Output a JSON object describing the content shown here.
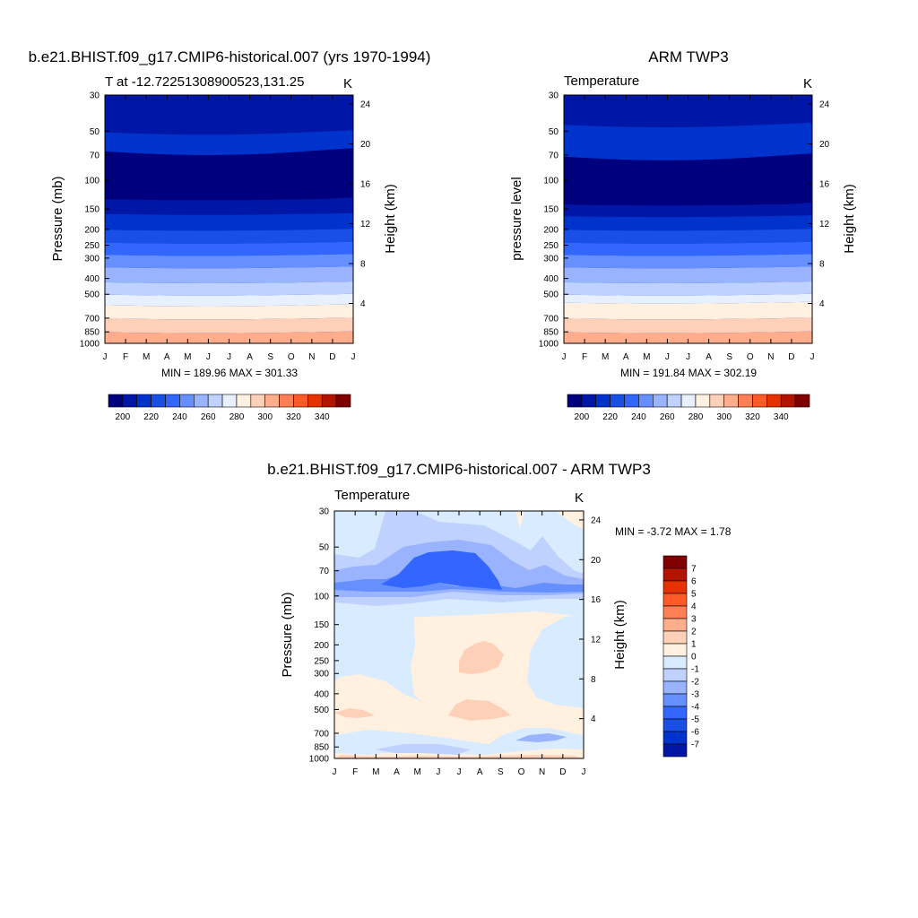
{
  "months": [
    "J",
    "F",
    "M",
    "A",
    "M",
    "J",
    "J",
    "A",
    "S",
    "O",
    "N",
    "D",
    "J"
  ],
  "palette_abs": [
    "#00007f",
    "#0016a6",
    "#0033cc",
    "#1a4fe6",
    "#3366ff",
    "#6690ff",
    "#99b3ff",
    "#bfd2ff",
    "#e6f0ff",
    "#fff0e0",
    "#ffd0b8",
    "#ffad8c",
    "#ff8055",
    "#ff5a28",
    "#e63200",
    "#b31400",
    "#800000"
  ],
  "palette_diff": [
    "#00007f",
    "#0016a6",
    "#0033cc",
    "#1a4fe6",
    "#3366ff",
    "#6690ff",
    "#99b3ff",
    "#bfd2ff",
    "#d9ebff",
    "#fff0e0",
    "#ffd0b8",
    "#ffad8c",
    "#ff8055",
    "#ff5a28",
    "#e63200",
    "#b31400",
    "#800000"
  ],
  "chart_data": [
    {
      "type": "contour",
      "title": "b.e21.BHIST.f09_g17.CMIP6-historical.007 (yrs 1970-1994)",
      "left_string": "T at -12.72251308900523,131.25",
      "right_string": "K",
      "ylabel": "Pressure (mb)",
      "ylabel_right": "Height (km)",
      "stats": "MIN = 189.96 MAX = 301.33",
      "pressure_ticks": [
        "30",
        "50",
        "70",
        "100",
        "150",
        "200",
        "250",
        "300",
        "400",
        "500",
        "700",
        "850",
        "1000"
      ],
      "height_ticks": [
        "24",
        "20",
        "16",
        "12",
        "8",
        "4"
      ],
      "colorbar_labels": [
        "200",
        "220",
        "240",
        "260",
        "280",
        "300",
        "320",
        "340"
      ],
      "levels": [
        [
          30,
          50,
          1
        ],
        [
          50,
          65,
          2
        ],
        [
          65,
          130,
          0
        ],
        [
          130,
          160,
          1
        ],
        [
          160,
          200,
          2
        ],
        [
          200,
          240,
          3
        ],
        [
          240,
          285,
          4
        ],
        [
          285,
          340,
          5
        ],
        [
          340,
          420,
          6
        ],
        [
          420,
          500,
          7
        ],
        [
          500,
          580,
          8
        ],
        [
          580,
          700,
          9
        ],
        [
          700,
          850,
          10
        ],
        [
          850,
          1000,
          11
        ]
      ]
    },
    {
      "type": "contour",
      "title": "ARM TWP3",
      "left_string": "Temperature",
      "right_string": "K",
      "ylabel": "pressure level",
      "ylabel_right": "Height (km)",
      "stats": "MIN = 191.84 MAX = 302.19",
      "pressure_ticks": [
        "30",
        "50",
        "70",
        "100",
        "150",
        "200",
        "250",
        "300",
        "400",
        "500",
        "700",
        "850",
        "1000"
      ],
      "height_ticks": [
        "24",
        "20",
        "16",
        "12",
        "8",
        "4"
      ],
      "colorbar_labels": [
        "200",
        "220",
        "240",
        "260",
        "280",
        "300",
        "320",
        "340"
      ],
      "levels": [
        [
          30,
          45,
          1
        ],
        [
          45,
          70,
          2
        ],
        [
          70,
          140,
          0
        ],
        [
          140,
          165,
          1
        ],
        [
          165,
          200,
          2
        ],
        [
          200,
          240,
          3
        ],
        [
          240,
          285,
          4
        ],
        [
          285,
          340,
          5
        ],
        [
          340,
          420,
          6
        ],
        [
          420,
          500,
          7
        ],
        [
          500,
          560,
          8
        ],
        [
          560,
          700,
          9
        ],
        [
          700,
          850,
          10
        ],
        [
          850,
          1000,
          11
        ]
      ]
    },
    {
      "type": "contour",
      "title": "b.e21.BHIST.f09_g17.CMIP6-historical.007 - ARM TWP3",
      "left_string": "Temperature",
      "right_string": "K",
      "ylabel": "Pressure (mb)",
      "ylabel_right": "Height (km)",
      "stats": "MIN =  -3.72 MAX =    1.78",
      "pressure_ticks": [
        "30",
        "50",
        "70",
        "100",
        "150",
        "200",
        "250",
        "300",
        "400",
        "500",
        "700",
        "850",
        "1000"
      ],
      "height_ticks": [
        "24",
        "20",
        "16",
        "12",
        "8",
        "4"
      ],
      "colorbar_labels": [
        "7",
        "6",
        "5",
        "4",
        "3",
        "2",
        "1",
        "0",
        "-1",
        "-2",
        "-3",
        "-4",
        "-5",
        "-6",
        "-7"
      ]
    }
  ]
}
